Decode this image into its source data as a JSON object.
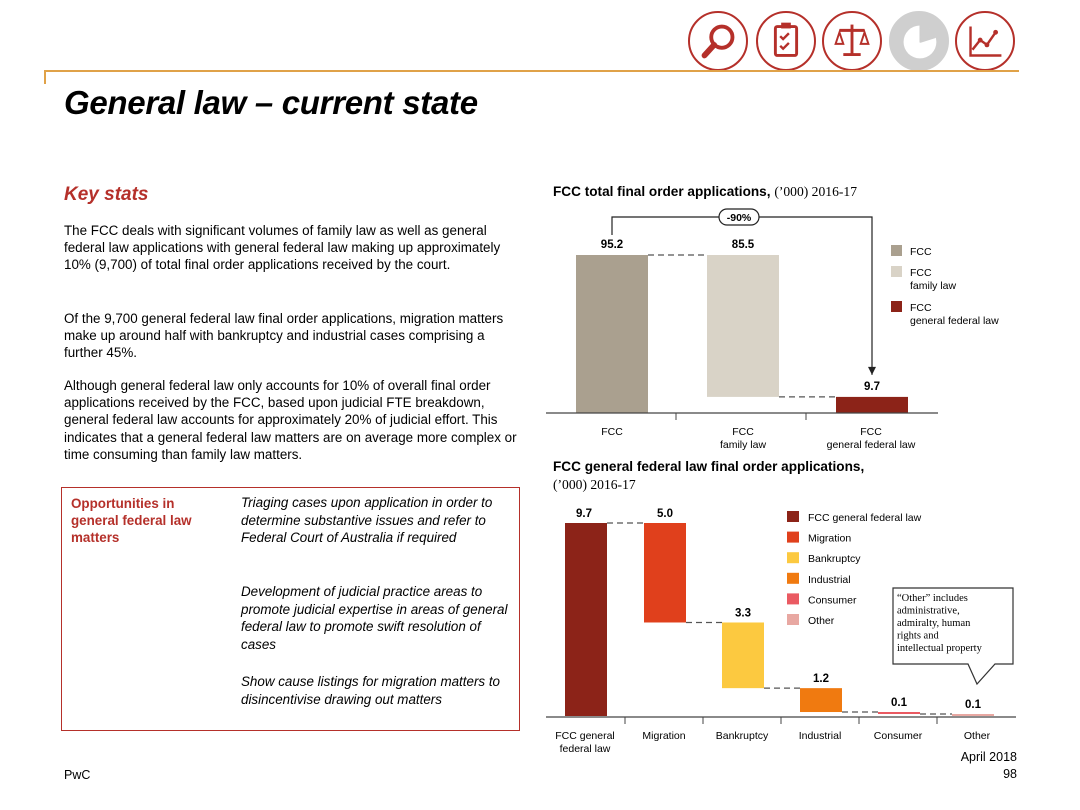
{
  "header": {
    "nav_icons": [
      {
        "name": "search-icon",
        "label": "magnifier"
      },
      {
        "name": "clipboard-icon",
        "label": "checklist"
      },
      {
        "name": "scales-icon",
        "label": "scales"
      },
      {
        "name": "pie-chart-icon",
        "label": "pie chart"
      },
      {
        "name": "line-chart-icon",
        "label": "line chart"
      }
    ],
    "accent_color": "#b5302a",
    "rule_color": "#e0a248"
  },
  "page_title": "General law – current state",
  "key_stats": {
    "heading": "Key stats",
    "paragraphs": [
      "The FCC deals with significant volumes of family law as well as general federal law applications with general federal law making up approximately 10% (9,700) of total final order applications received by the court.",
      "Of the 9,700 general federal law final order applications, migration matters make up around half with bankruptcy and industrial cases comprising a further 45%.",
      "Although general federal law only accounts for 10% of overall final order applications received by the FCC, based upon judicial FTE breakdown, general federal law accounts for approximately 20% of judicial effort. This indicates that a general federal law matters are on average more complex or time consuming than family law matters."
    ]
  },
  "opportunities": {
    "heading": "Opportunities in general federal law matters",
    "items": [
      "Triaging cases upon application in order to determine substantive issues and refer to Federal Court of Australia if required",
      "Development of judicial practice areas to promote judicial expertise in areas of general federal law to promote swift resolution of cases",
      "Show cause listings for migration matters to disincentivise drawing out matters"
    ]
  },
  "chart_data": [
    {
      "type": "bar",
      "subtype": "waterfall",
      "title": "FCC total final order applications,",
      "subtitle": "(’000) 2016-17",
      "categories": [
        "FCC",
        "FCC\nfamily law",
        "FCC\ngeneral federal law"
      ],
      "values": [
        95.2,
        85.5,
        9.7
      ],
      "value_labels": [
        "95.2",
        "85.5",
        "9.7"
      ],
      "colors": [
        "#aaa08f",
        "#d9d3c7",
        "#8c2318"
      ],
      "annotation": "-90%",
      "legend": [
        {
          "label": "FCC",
          "color": "#aaa08f"
        },
        {
          "label": "FCC\nfamily law",
          "color": "#d9d3c7"
        },
        {
          "label": "FCC\ngeneral federal law",
          "color": "#8c2318"
        }
      ],
      "legend_position": "right",
      "ylim": [
        0,
        95.2
      ],
      "grid": false
    },
    {
      "type": "bar",
      "subtype": "waterfall",
      "title": "FCC general federal law final order applications,",
      "subtitle": "(’000) 2016-17",
      "categories": [
        "FCC general\nfederal law",
        "Migration",
        "Bankruptcy",
        "Industrial",
        "Consumer",
        "Other"
      ],
      "values": [
        9.7,
        5.0,
        3.3,
        1.2,
        0.1,
        0.1
      ],
      "value_labels": [
        "9.7",
        "5.0",
        "3.3",
        "1.2",
        "0.1",
        "0.1"
      ],
      "colors": [
        "#8c2318",
        "#e0401c",
        "#fcc940",
        "#f07a10",
        "#ea5a62",
        "#e8a8a2"
      ],
      "legend": [
        {
          "label": "FCC general federal law",
          "color": "#8c2318"
        },
        {
          "label": "Migration",
          "color": "#e0401c"
        },
        {
          "label": "Bankruptcy",
          "color": "#fcc940"
        },
        {
          "label": "Industrial",
          "color": "#f07a10"
        },
        {
          "label": "Consumer",
          "color": "#ea5a62"
        },
        {
          "label": "Other",
          "color": "#e8a8a2"
        }
      ],
      "legend_position": "right",
      "callout": "“Other” includes administrative, admiralty, human rights and intellectual property",
      "ylim": [
        0,
        9.7
      ],
      "grid": false
    }
  ],
  "footer": {
    "left": "PwC",
    "date": "April 2018",
    "page": "98"
  }
}
